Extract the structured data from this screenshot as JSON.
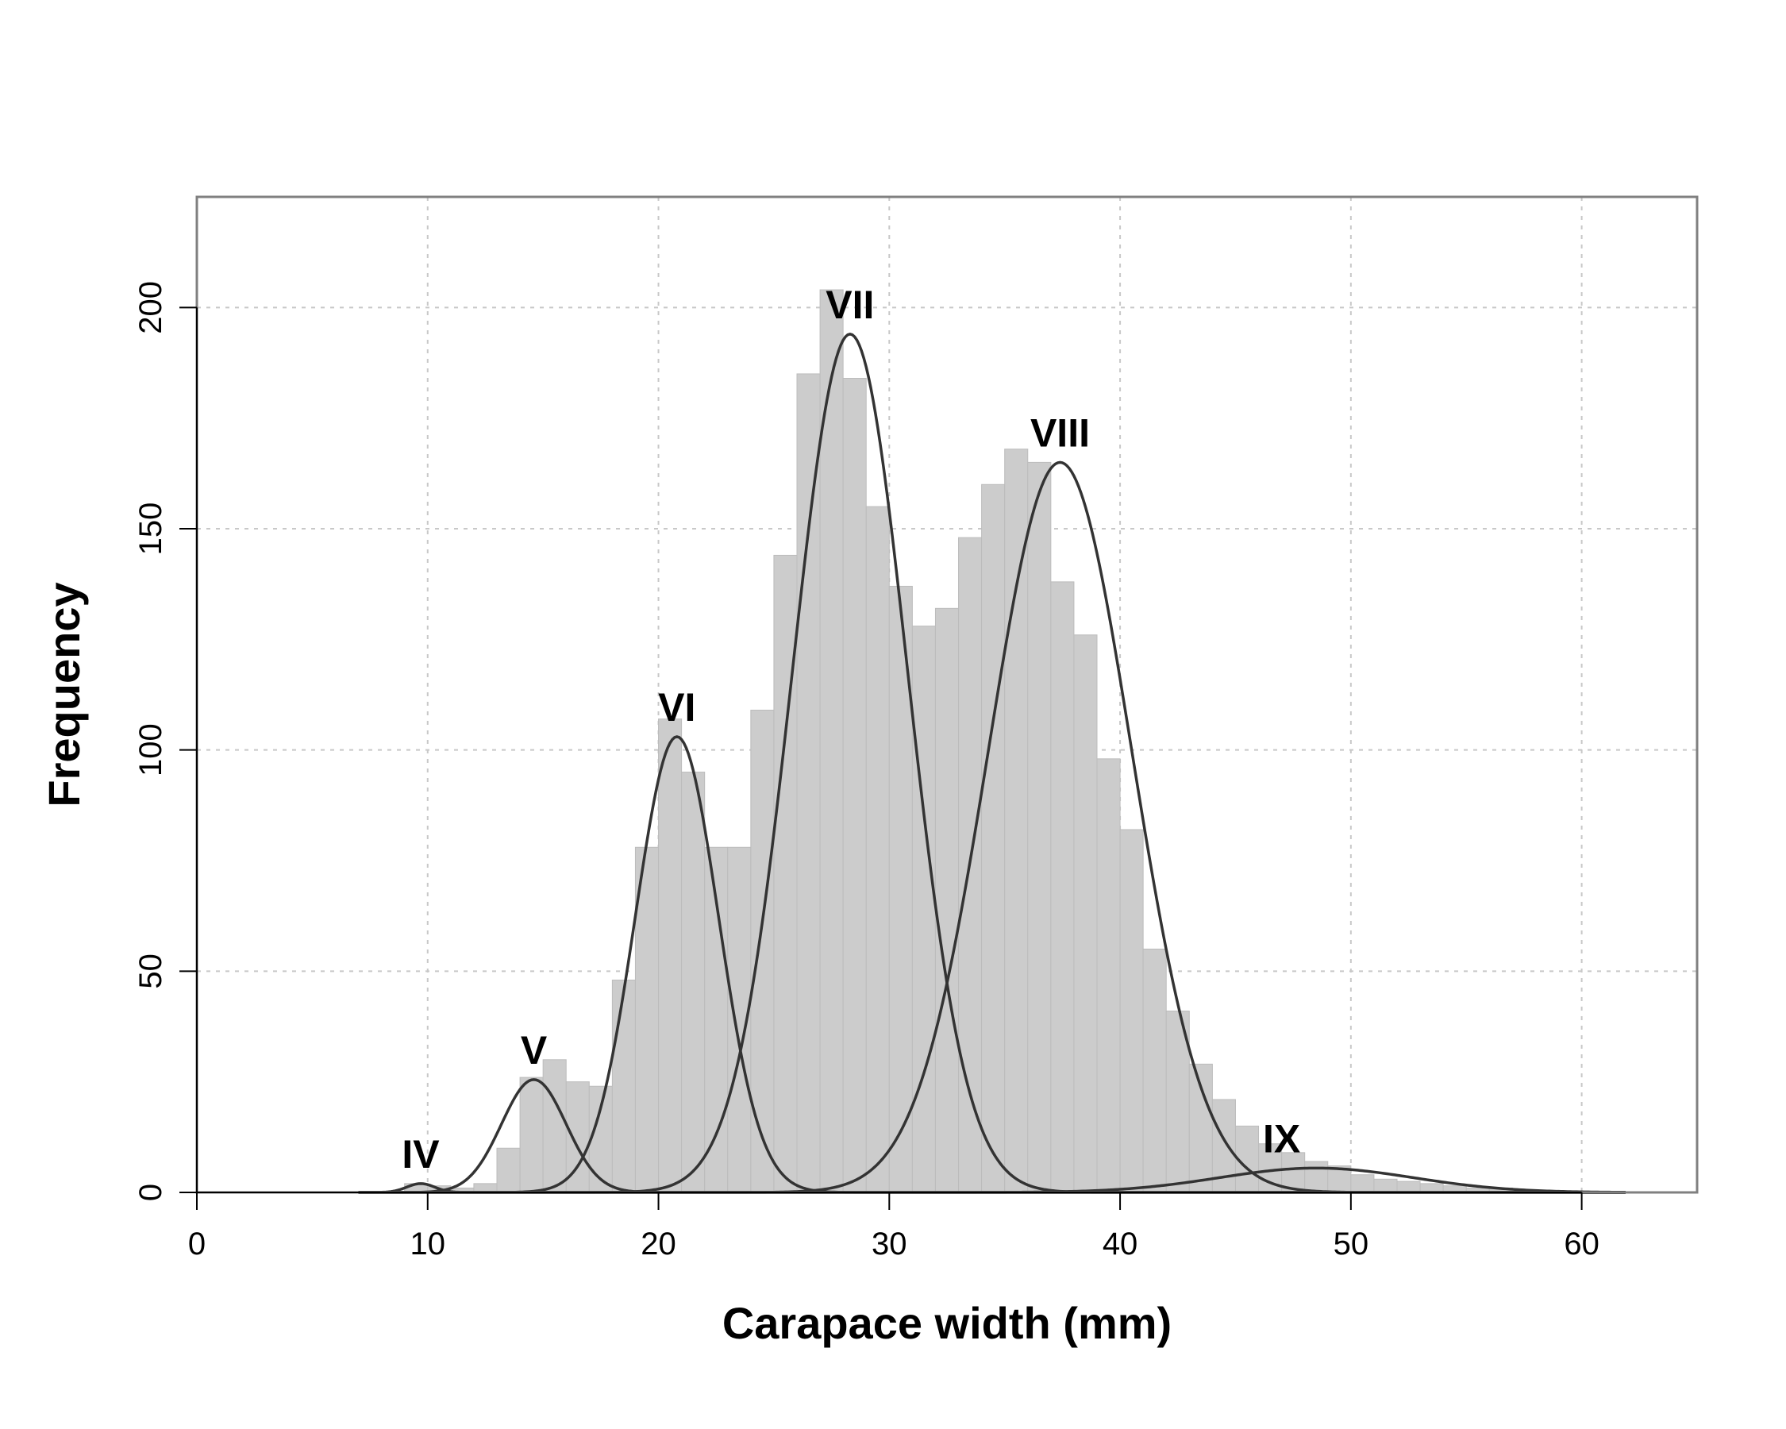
{
  "chart_data": {
    "type": "bar",
    "xlabel": "Carapace width (mm)",
    "ylabel": "Frequency",
    "xlim": [
      0,
      65
    ],
    "ylim": [
      0,
      225
    ],
    "x_ticks": [
      "0",
      "10",
      "20",
      "30",
      "40",
      "50",
      "60"
    ],
    "y_ticks": [
      "0",
      "50",
      "100",
      "150",
      "200"
    ],
    "grid": true,
    "bin_width": 1,
    "bin_start": 9,
    "histogram_counts": [
      2,
      1.5,
      1,
      2,
      10,
      26,
      30,
      25,
      24,
      48,
      78,
      107,
      95,
      78,
      78,
      109,
      144,
      185,
      204,
      184,
      155,
      137,
      128,
      132,
      148,
      160,
      168,
      165,
      138,
      126,
      98,
      82,
      55,
      41,
      29,
      21,
      15,
      11,
      9,
      7,
      6,
      4,
      3,
      2.5,
      2,
      1.5,
      1,
      1,
      0.5
    ],
    "bar_color": "#cccccc",
    "curve_color": "#333333",
    "components": [
      {
        "label": "IV",
        "mean": 9.7,
        "sd": 0.6,
        "peak": 2
      },
      {
        "label": "V",
        "mean": 14.6,
        "sd": 1.4,
        "peak": 25.5
      },
      {
        "label": "VI",
        "mean": 20.8,
        "sd": 1.8,
        "peak": 103
      },
      {
        "label": "VII",
        "mean": 28.3,
        "sd": 2.5,
        "peak": 194
      },
      {
        "label": "VIII",
        "mean": 37.4,
        "sd": 3.1,
        "peak": 165
      },
      {
        "label": "IX",
        "mean": 48.5,
        "sd": 4.2,
        "peak": 5.5
      }
    ]
  }
}
